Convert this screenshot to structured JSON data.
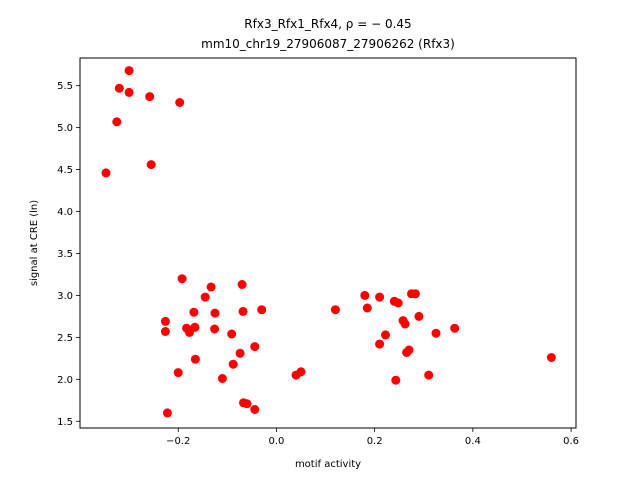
{
  "chart_data": {
    "type": "scatter",
    "title_line1": "Rfx3_Rfx1_Rfx4, ρ = − 0.45",
    "title_line2": "mm10_chr19_27906087_27906262 (Rfx3)",
    "xlabel": "motif activity",
    "ylabel": "signal at CRE (ln)",
    "xlim": [
      -0.4,
      0.61
    ],
    "ylim": [
      1.42,
      5.83
    ],
    "xticks": [
      -0.2,
      0.0,
      0.2,
      0.4,
      0.6
    ],
    "xtick_labels": [
      "−0.2",
      "0.0",
      "0.2",
      "0.4",
      "0.6"
    ],
    "yticks": [
      1.5,
      2.0,
      2.5,
      3.0,
      3.5,
      4.0,
      4.5,
      5.0,
      5.5
    ],
    "ytick_labels": [
      "1.5",
      "2.0",
      "2.5",
      "3.0",
      "3.5",
      "4.0",
      "4.5",
      "5.0",
      "5.5"
    ],
    "marker_color": "#ff0000",
    "grid": false,
    "points": [
      {
        "x": -0.3,
        "y": 5.68
      },
      {
        "x": -0.32,
        "y": 5.47
      },
      {
        "x": -0.3,
        "y": 5.42
      },
      {
        "x": -0.258,
        "y": 5.37
      },
      {
        "x": -0.197,
        "y": 5.3
      },
      {
        "x": -0.325,
        "y": 5.07
      },
      {
        "x": -0.255,
        "y": 4.56
      },
      {
        "x": -0.347,
        "y": 4.46
      },
      {
        "x": -0.192,
        "y": 3.2
      },
      {
        "x": -0.07,
        "y": 3.13
      },
      {
        "x": -0.133,
        "y": 3.1
      },
      {
        "x": -0.145,
        "y": 2.98
      },
      {
        "x": -0.03,
        "y": 2.83
      },
      {
        "x": -0.068,
        "y": 2.81
      },
      {
        "x": -0.168,
        "y": 2.8
      },
      {
        "x": -0.125,
        "y": 2.79
      },
      {
        "x": -0.226,
        "y": 2.69
      },
      {
        "x": -0.166,
        "y": 2.62
      },
      {
        "x": -0.183,
        "y": 2.61
      },
      {
        "x": -0.126,
        "y": 2.6
      },
      {
        "x": -0.226,
        "y": 2.57
      },
      {
        "x": -0.177,
        "y": 2.56
      },
      {
        "x": -0.091,
        "y": 2.54
      },
      {
        "x": -0.044,
        "y": 2.39
      },
      {
        "x": -0.074,
        "y": 2.31
      },
      {
        "x": -0.165,
        "y": 2.24
      },
      {
        "x": -0.088,
        "y": 2.18
      },
      {
        "x": -0.2,
        "y": 2.08
      },
      {
        "x": -0.11,
        "y": 2.01
      },
      {
        "x": -0.067,
        "y": 1.72
      },
      {
        "x": -0.06,
        "y": 1.71
      },
      {
        "x": -0.044,
        "y": 1.64
      },
      {
        "x": -0.222,
        "y": 1.6
      },
      {
        "x": 0.05,
        "y": 2.09
      },
      {
        "x": 0.04,
        "y": 2.05
      },
      {
        "x": 0.12,
        "y": 2.83
      },
      {
        "x": 0.18,
        "y": 3.0
      },
      {
        "x": 0.21,
        "y": 2.98
      },
      {
        "x": 0.185,
        "y": 2.85
      },
      {
        "x": 0.24,
        "y": 2.93
      },
      {
        "x": 0.248,
        "y": 2.91
      },
      {
        "x": 0.275,
        "y": 3.02
      },
      {
        "x": 0.283,
        "y": 3.02
      },
      {
        "x": 0.29,
        "y": 2.75
      },
      {
        "x": 0.258,
        "y": 2.7
      },
      {
        "x": 0.262,
        "y": 2.66
      },
      {
        "x": 0.222,
        "y": 2.53
      },
      {
        "x": 0.21,
        "y": 2.42
      },
      {
        "x": 0.27,
        "y": 2.35
      },
      {
        "x": 0.265,
        "y": 2.32
      },
      {
        "x": 0.243,
        "y": 1.99
      },
      {
        "x": 0.31,
        "y": 2.05
      },
      {
        "x": 0.325,
        "y": 2.55
      },
      {
        "x": 0.363,
        "y": 2.61
      },
      {
        "x": 0.56,
        "y": 2.26
      }
    ]
  }
}
